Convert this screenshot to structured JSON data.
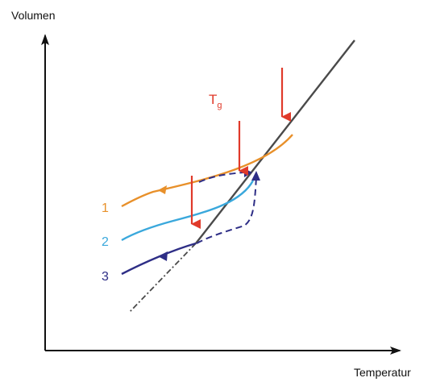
{
  "axes": {
    "y_label": "Volumen",
    "x_label": "Temperatur"
  },
  "transition_label": {
    "main": "T",
    "subscript": "g"
  },
  "curves": [
    {
      "label": "1",
      "color": "#e8902a"
    },
    {
      "label": "2",
      "color": "#3aa8dc"
    },
    {
      "label": "3",
      "color": "#2e2e86"
    }
  ],
  "colors": {
    "liquid_line": "#4a4a4a",
    "arrows": "#e03a2a",
    "dashed_path": "#2e2e86",
    "axes": "#111111"
  }
}
